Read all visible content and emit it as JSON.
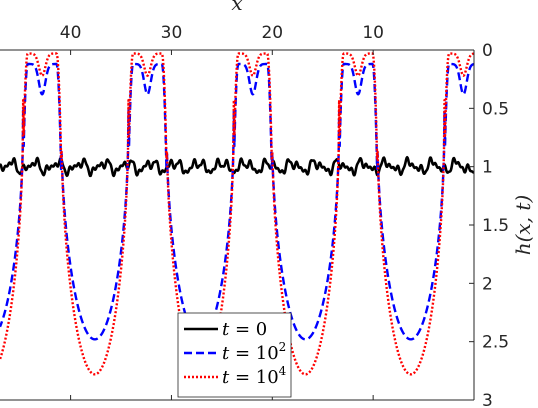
{
  "chart_data": {
    "type": "line",
    "xlabel": "x",
    "ylabel": "h(x, t)",
    "x_axis_position": "top",
    "x_reversed": true,
    "y_reversed": true,
    "xlim": [
      0,
      47
    ],
    "ylim": [
      0,
      3
    ],
    "x_ticks": [
      40,
      30,
      20,
      10
    ],
    "y_ticks": [
      0,
      0.5,
      1,
      1.5,
      2,
      2.5,
      3
    ],
    "y_tick_labels": [
      "0",
      "0.5",
      "1",
      "1.5",
      "2",
      "2.5",
      "3"
    ],
    "y_axis_side": "right",
    "grid": false,
    "legend_position": "bottom-center",
    "series": [
      {
        "name": "t = 0",
        "name_main": "t = ",
        "name_value": "0",
        "name_exponent": "",
        "color": "#000000",
        "style": "solid",
        "note": "noisy flat profile near h = 1",
        "y_min": 0.92,
        "y_max": 1.06
      },
      {
        "name": "t = 10^2",
        "name_main": "t = ",
        "name_value": "10",
        "name_exponent": "2",
        "color": "#0000ff",
        "style": "dashed",
        "periods": 4.5,
        "trough_depth": 0.12,
        "dip_between_peaks": 0.38,
        "max_h": 2.48
      },
      {
        "name": "t = 10^4",
        "name_main": "t = ",
        "name_value": "10",
        "name_exponent": "4",
        "color": "#ff0000",
        "style": "dotted",
        "periods": 4.5,
        "trough_depth": 0.03,
        "dip_between_peaks": 0.22,
        "max_h": 2.78
      }
    ]
  }
}
